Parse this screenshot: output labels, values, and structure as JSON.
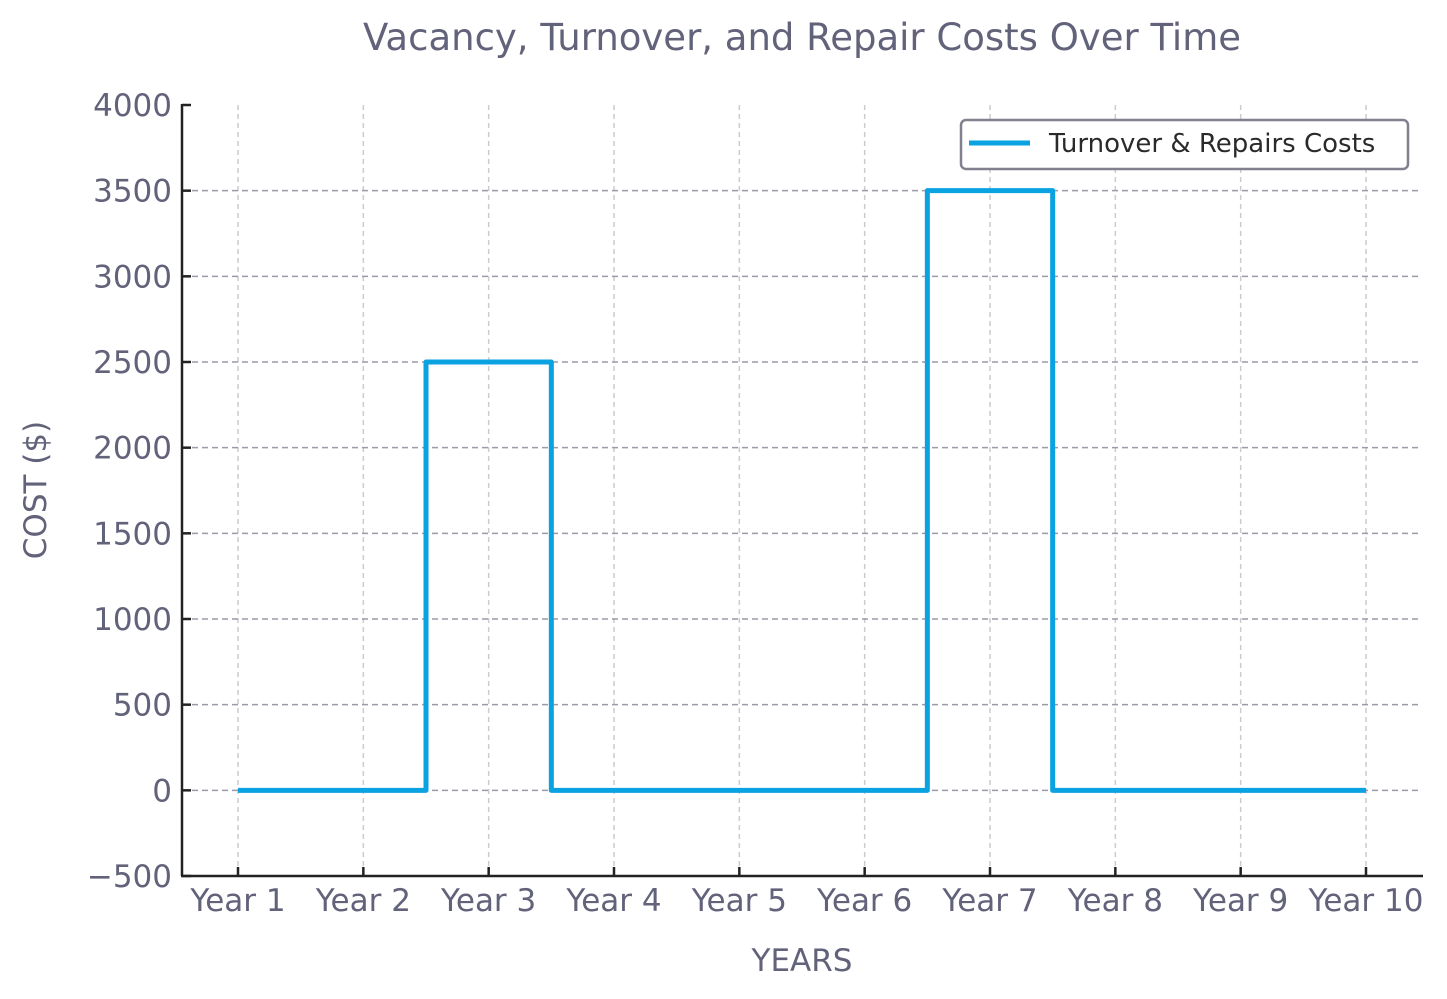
{
  "chart_data": {
    "type": "line",
    "step": "mid",
    "title": "Vacancy, Turnover, and Repair Costs Over Time",
    "xlabel": "YEARS",
    "ylabel": "COST ($)",
    "categories": [
      "Year 1",
      "Year 2",
      "Year 3",
      "Year 4",
      "Year 5",
      "Year 6",
      "Year 7",
      "Year 8",
      "Year 9",
      "Year 10"
    ],
    "series": [
      {
        "name": "Turnover & Repairs Costs",
        "color": "#0aa2e0",
        "values": [
          0,
          0,
          2500,
          0,
          0,
          0,
          3500,
          0,
          0,
          0
        ]
      }
    ],
    "ylim": [
      -500,
      4000
    ],
    "yticks": [
      -500,
      0,
      500,
      1000,
      1500,
      2000,
      2500,
      3000,
      3500,
      4000
    ],
    "ytick_labels": [
      "−500",
      "0",
      "500",
      "1000",
      "1500",
      "2000",
      "2500",
      "3000",
      "3500",
      "4000"
    ],
    "grid": true,
    "legend_position": "upper right"
  },
  "colors": {
    "text": "#62627a",
    "axis": "#222222",
    "grid_h": "#9a9aa8",
    "grid_v": "#cccccc",
    "legend_border": "#80808f"
  }
}
